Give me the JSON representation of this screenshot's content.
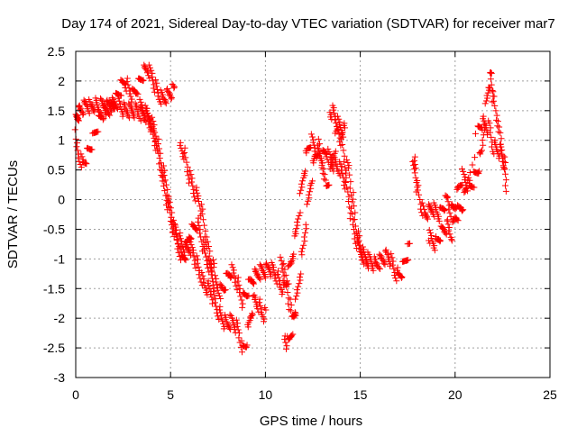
{
  "chart_data": {
    "type": "scatter",
    "title": "Day 174 of 2021, Sidereal Day-to-day VTEC variation (SDTVAR) for receiver mar7",
    "xlabel": "GPS time / hours",
    "ylabel": "SDTVAR / TECUs",
    "xlim": [
      0,
      25
    ],
    "ylim": [
      -3,
      2.5
    ],
    "xticks": [
      0,
      5,
      10,
      15,
      20,
      25
    ],
    "yticks": [
      -3,
      -2.5,
      -2,
      -1.5,
      -1,
      -0.5,
      0,
      0.5,
      1,
      1.5,
      2,
      2.5
    ],
    "grid": true,
    "marker": "+",
    "color": "#ff0000",
    "series": [
      {
        "points": [
          [
            0.0,
            1.3
          ],
          [
            0.1,
            1.4
          ],
          [
            0.2,
            1.5
          ],
          [
            0.4,
            1.55
          ],
          [
            0.6,
            1.6
          ],
          [
            0.8,
            1.55
          ],
          [
            1.0,
            1.6
          ],
          [
            1.2,
            1.55
          ],
          [
            1.4,
            1.6
          ],
          [
            1.6,
            1.55
          ],
          [
            1.8,
            1.6
          ],
          [
            2.0,
            1.6
          ],
          [
            2.2,
            1.65
          ],
          [
            2.4,
            1.55
          ],
          [
            2.6,
            1.5
          ],
          [
            2.8,
            1.5
          ],
          [
            3.0,
            1.5
          ],
          [
            3.2,
            1.5
          ],
          [
            3.4,
            1.45
          ],
          [
            3.6,
            1.45
          ],
          [
            3.8,
            1.4
          ],
          [
            4.0,
            1.3
          ],
          [
            4.2,
            1.1
          ],
          [
            4.4,
            0.8
          ],
          [
            4.6,
            0.5
          ],
          [
            4.8,
            0.2
          ],
          [
            5.0,
            -0.2
          ],
          [
            5.2,
            -0.5
          ],
          [
            5.4,
            -0.8
          ],
          [
            5.6,
            -1.0
          ],
          [
            5.8,
            -0.9
          ],
          [
            6.0,
            -0.6
          ],
          [
            6.2,
            -0.5
          ],
          [
            6.4,
            -0.4
          ],
          [
            6.6,
            -0.6
          ],
          [
            6.8,
            -0.9
          ],
          [
            7.0,
            -1.1
          ],
          [
            7.2,
            -1.3
          ],
          [
            7.4,
            -1.45
          ],
          [
            7.6,
            -1.55
          ],
          [
            7.8,
            -1.5
          ],
          [
            8.0,
            -1.3
          ],
          [
            8.2,
            -1.2
          ],
          [
            8.4,
            -1.3
          ],
          [
            8.6,
            -1.5
          ],
          [
            8.8,
            -1.7
          ],
          [
            9.0,
            -1.6
          ],
          [
            9.2,
            -1.4
          ],
          [
            9.4,
            -1.3
          ],
          [
            9.6,
            -1.25
          ],
          [
            9.8,
            -1.2
          ],
          [
            10.0,
            -1.2
          ],
          [
            10.2,
            -1.15
          ],
          [
            10.4,
            -1.2
          ],
          [
            10.6,
            -1.3
          ],
          [
            10.8,
            -1.45
          ],
          [
            11.0,
            -1.5
          ],
          [
            11.2,
            -1.3
          ],
          [
            11.4,
            -1.0
          ],
          [
            11.6,
            -0.6
          ],
          [
            11.8,
            -0.1
          ],
          [
            12.0,
            0.4
          ],
          [
            12.2,
            0.8
          ],
          [
            12.4,
            1.0
          ],
          [
            12.6,
            0.9
          ],
          [
            12.8,
            0.75
          ],
          [
            13.0,
            0.7
          ],
          [
            13.2,
            0.8
          ],
          [
            13.4,
            0.7
          ],
          [
            13.6,
            0.6
          ],
          [
            13.8,
            0.55
          ],
          [
            14.0,
            0.5
          ],
          [
            14.2,
            0.3
          ],
          [
            14.4,
            0.0
          ],
          [
            14.6,
            -0.4
          ],
          [
            14.8,
            -0.7
          ],
          [
            15.0,
            -0.85
          ],
          [
            15.2,
            -0.95
          ],
          [
            15.4,
            -1.0
          ],
          [
            15.6,
            -1.05
          ],
          [
            15.8,
            -1.1
          ],
          [
            16.0,
            -1.05
          ],
          [
            16.2,
            -1.0
          ],
          [
            16.4,
            -0.95
          ],
          [
            16.6,
            -1.0
          ],
          [
            16.8,
            -1.2
          ],
          [
            17.0,
            -1.3
          ],
          [
            17.2,
            -1.2
          ],
          [
            17.4,
            -1.0
          ],
          [
            17.6,
            -0.8
          ]
        ]
      },
      {
        "points": [
          [
            0.0,
            0.9
          ],
          [
            0.2,
            0.7
          ],
          [
            0.4,
            0.6
          ],
          [
            0.6,
            0.75
          ],
          [
            0.8,
            0.9
          ],
          [
            1.0,
            1.1
          ],
          [
            1.2,
            1.3
          ],
          [
            1.4,
            1.45
          ],
          [
            1.6,
            1.5
          ],
          [
            1.8,
            1.55
          ],
          [
            2.0,
            1.6
          ],
          [
            2.2,
            1.75
          ],
          [
            2.4,
            1.9
          ],
          [
            2.6,
            2.0
          ],
          [
            2.8,
            1.85
          ],
          [
            3.0,
            1.75
          ],
          [
            3.2,
            1.85
          ],
          [
            3.4,
            2.0
          ],
          [
            3.6,
            2.15
          ],
          [
            3.8,
            2.2
          ],
          [
            4.0,
            2.1
          ],
          [
            4.2,
            1.9
          ],
          [
            4.4,
            1.75
          ],
          [
            4.6,
            1.7
          ],
          [
            4.8,
            1.75
          ],
          [
            5.0,
            1.8
          ],
          [
            5.2,
            1.85
          ]
        ]
      },
      {
        "points": [
          [
            3.4,
            1.6
          ],
          [
            3.6,
            1.5
          ],
          [
            3.8,
            1.4
          ],
          [
            4.0,
            1.2
          ],
          [
            4.2,
            1.0
          ],
          [
            4.4,
            0.7
          ],
          [
            4.6,
            0.3
          ],
          [
            4.8,
            0.0
          ],
          [
            5.0,
            -0.3
          ],
          [
            5.2,
            -0.5
          ],
          [
            5.4,
            -0.65
          ],
          [
            5.6,
            -0.75
          ],
          [
            5.8,
            -0.85
          ],
          [
            6.0,
            -0.8
          ],
          [
            6.2,
            -0.9
          ],
          [
            6.4,
            -1.1
          ],
          [
            6.6,
            -1.3
          ],
          [
            6.8,
            -1.45
          ],
          [
            7.0,
            -1.5
          ],
          [
            7.2,
            -1.6
          ],
          [
            7.4,
            -1.8
          ],
          [
            7.6,
            -1.95
          ],
          [
            7.8,
            -2.05
          ],
          [
            8.0,
            -2.1
          ],
          [
            8.2,
            -2.05
          ],
          [
            8.4,
            -2.1
          ],
          [
            8.6,
            -2.25
          ],
          [
            8.8,
            -2.55
          ],
          [
            9.0,
            -2.4
          ],
          [
            9.2,
            -2.0
          ],
          [
            9.4,
            -1.7
          ],
          [
            9.6,
            -1.75
          ],
          [
            9.8,
            -1.9
          ],
          [
            10.0,
            -1.95
          ]
        ]
      },
      {
        "points": [
          [
            5.5,
            0.9
          ],
          [
            5.7,
            0.8
          ],
          [
            5.9,
            0.5
          ],
          [
            6.1,
            0.3
          ],
          [
            6.3,
            0.1
          ],
          [
            6.5,
            0.0
          ],
          [
            6.7,
            -0.3
          ],
          [
            6.9,
            -0.7
          ],
          [
            7.1,
            -1.0
          ],
          [
            7.3,
            -1.2
          ]
        ]
      },
      {
        "points": [
          [
            10.8,
            -1.0
          ],
          [
            11.0,
            -1.2
          ],
          [
            11.2,
            -1.6
          ],
          [
            11.4,
            -2.0
          ],
          [
            11.6,
            -1.8
          ],
          [
            11.8,
            -1.3
          ],
          [
            12.0,
            -0.8
          ],
          [
            12.2,
            -0.2
          ],
          [
            12.4,
            0.3
          ],
          [
            12.6,
            0.7
          ],
          [
            12.8,
            0.9
          ],
          [
            13.0,
            0.6
          ],
          [
            13.2,
            0.2
          ],
          [
            13.4,
            0.4
          ],
          [
            13.6,
            0.8
          ],
          [
            13.8,
            1.2
          ],
          [
            14.0,
            1.0
          ],
          [
            14.2,
            0.6
          ],
          [
            14.4,
            0.5
          ],
          [
            14.6,
            0.0
          ],
          [
            14.8,
            -0.5
          ],
          [
            15.0,
            -0.8
          ],
          [
            15.2,
            -1.0
          ],
          [
            15.4,
            -1.1
          ]
        ]
      },
      {
        "points": [
          [
            11.0,
            -2.3
          ],
          [
            11.2,
            -2.45
          ],
          [
            11.4,
            -2.2
          ],
          [
            11.6,
            -1.9
          ]
        ]
      },
      {
        "points": [
          [
            13.4,
            1.5
          ],
          [
            13.6,
            1.45
          ],
          [
            13.8,
            1.3
          ],
          [
            14.0,
            1.2
          ],
          [
            14.2,
            1.15
          ]
        ]
      },
      {
        "points": [
          [
            17.8,
            0.7
          ],
          [
            17.9,
            0.5
          ],
          [
            18.0,
            0.2
          ],
          [
            18.2,
            -0.1
          ],
          [
            18.4,
            -0.25
          ],
          [
            18.6,
            -0.2
          ],
          [
            18.8,
            -0.15
          ],
          [
            19.0,
            -0.2
          ],
          [
            19.2,
            -0.25
          ],
          [
            19.4,
            -0.1
          ],
          [
            19.6,
            0.0
          ],
          [
            19.8,
            -0.2
          ],
          [
            20.0,
            -0.1
          ],
          [
            20.2,
            0.2
          ],
          [
            20.4,
            0.4
          ],
          [
            20.6,
            0.3
          ],
          [
            20.8,
            0.2
          ],
          [
            21.0,
            0.35
          ],
          [
            21.2,
            0.5
          ],
          [
            21.4,
            0.8
          ],
          [
            21.6,
            1.5
          ],
          [
            21.8,
            1.95
          ],
          [
            21.9,
            2.1
          ],
          [
            22.0,
            1.7
          ],
          [
            22.2,
            1.4
          ],
          [
            22.4,
            1.0
          ],
          [
            22.6,
            0.6
          ],
          [
            22.7,
            0.2
          ]
        ]
      },
      {
        "points": [
          [
            18.6,
            -0.6
          ],
          [
            18.8,
            -0.7
          ],
          [
            19.0,
            -0.75
          ],
          [
            19.2,
            -0.6
          ],
          [
            19.4,
            -0.5
          ],
          [
            19.6,
            -0.45
          ],
          [
            19.8,
            -0.6
          ],
          [
            20.0,
            -0.3
          ],
          [
            20.2,
            -0.2
          ],
          [
            20.4,
            -0.1
          ],
          [
            20.6,
            0.2
          ],
          [
            21.2,
            1.15
          ],
          [
            21.4,
            1.3
          ],
          [
            21.6,
            1.25
          ],
          [
            21.8,
            1.2
          ],
          [
            22.0,
            0.9
          ],
          [
            22.2,
            0.85
          ],
          [
            22.4,
            0.8
          ],
          [
            22.6,
            0.6
          ]
        ]
      }
    ]
  }
}
